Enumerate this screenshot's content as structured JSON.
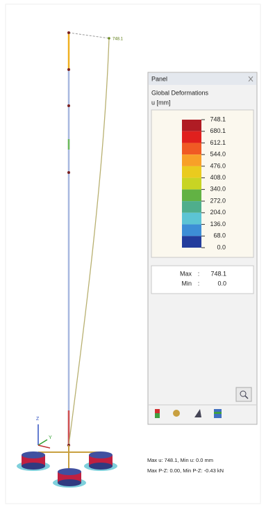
{
  "model": {
    "max_label": "748.1",
    "axes": [
      "Z",
      "Y"
    ]
  },
  "panel": {
    "title": "Panel",
    "heading": "Global Deformations",
    "unit": "u [mm]",
    "legend": {
      "labels": [
        "748.1",
        "680.1",
        "612.1",
        "544.0",
        "476.0",
        "408.0",
        "340.0",
        "272.0",
        "204.0",
        "136.0",
        "68.0",
        "0.0"
      ],
      "colors": [
        "#b01c24",
        "#e0201e",
        "#f05a24",
        "#f8a028",
        "#eacb1e",
        "#c8d424",
        "#62b244",
        "#4fae8c",
        "#5cc4d4",
        "#3d8ed6",
        "#223c9c"
      ]
    },
    "summary": [
      {
        "label": "Max",
        "sep": ":",
        "value": "748.1"
      },
      {
        "label": "Min",
        "sep": ":",
        "value": "0.0"
      }
    ]
  },
  "status": [
    "Max u: 748.1, Min u: 0.0 mm",
    "Max P-Z: 0.00, Min P-Z: -0.43 kN"
  ]
}
